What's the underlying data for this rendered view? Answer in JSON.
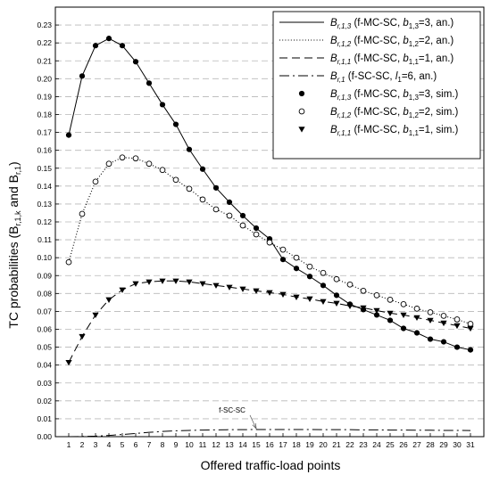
{
  "chart_data": {
    "type": "line",
    "xlabel": "Offered traffic-load points",
    "ylabel": "TC probabilities (B",
    "ylabel_sub1": "r,1,k",
    "ylabel_mid": " and B",
    "ylabel_sub2": "r,1",
    "ylabel_end": ")",
    "xlim": [
      0,
      32
    ],
    "ylim": [
      0,
      0.24
    ],
    "x_ticks": [
      1,
      2,
      3,
      4,
      5,
      6,
      7,
      8,
      9,
      10,
      11,
      12,
      13,
      14,
      15,
      16,
      17,
      18,
      19,
      20,
      21,
      22,
      23,
      24,
      25,
      26,
      27,
      28,
      29,
      30,
      31
    ],
    "y_ticks": [
      "0.00",
      "0.01",
      "0.02",
      "0.03",
      "0.04",
      "0.05",
      "0.06",
      "0.07",
      "0.08",
      "0.09",
      "0.10",
      "0.11",
      "0.12",
      "0.13",
      "0.14",
      "0.15",
      "0.16",
      "0.17",
      "0.18",
      "0.19",
      "0.20",
      "0.21",
      "0.22",
      "0.23"
    ],
    "grid": "horizontal dashed",
    "legend_position": "top-right",
    "x": [
      1,
      2,
      3,
      4,
      5,
      6,
      7,
      8,
      9,
      10,
      11,
      12,
      13,
      14,
      15,
      16,
      17,
      18,
      19,
      20,
      21,
      22,
      23,
      24,
      25,
      26,
      27,
      28,
      29,
      30,
      31
    ],
    "series": [
      {
        "legend_main": "B",
        "legend_sub": "r,1,3",
        "legend_rest": " (f-MC-SC, ",
        "legend_pname": "b",
        "legend_psub": "1,3",
        "legend_pval": "=3, an.)",
        "style": "solid",
        "values": [
          0.1685,
          0.2015,
          0.2185,
          0.2225,
          0.2185,
          0.2095,
          0.1975,
          0.1855,
          0.1745,
          0.1605,
          0.1495,
          0.139,
          0.131,
          0.1235,
          0.1165,
          0.1105,
          0.099,
          0.094,
          0.0895,
          0.0845,
          0.079,
          0.074,
          0.071,
          0.068,
          0.065,
          0.0605,
          0.058,
          0.0545,
          0.053,
          0.05,
          0.0485
        ]
      },
      {
        "legend_main": "B",
        "legend_sub": "r,1,2",
        "legend_rest": " (f-MC-SC, ",
        "legend_pname": "b",
        "legend_psub": "1,2",
        "legend_pval": "=2, an.)",
        "style": "dotted",
        "values": [
          0.0975,
          0.1245,
          0.1425,
          0.1525,
          0.156,
          0.1555,
          0.1525,
          0.149,
          0.1435,
          0.1385,
          0.1325,
          0.127,
          0.1235,
          0.118,
          0.113,
          0.1085,
          0.1045,
          0.1,
          0.095,
          0.0915,
          0.088,
          0.085,
          0.0815,
          0.079,
          0.0765,
          0.074,
          0.0715,
          0.0695,
          0.0675,
          0.0655,
          0.063
        ]
      },
      {
        "legend_main": "B",
        "legend_sub": "r,1,1",
        "legend_rest": " (f-MC-SC, ",
        "legend_pname": "b",
        "legend_psub": "1,1",
        "legend_pval": "=1, an.)",
        "style": "dashed",
        "values": [
          0.0415,
          0.056,
          0.068,
          0.0765,
          0.082,
          0.0855,
          0.0865,
          0.087,
          0.087,
          0.0865,
          0.0855,
          0.0845,
          0.0835,
          0.0825,
          0.0815,
          0.0805,
          0.0795,
          0.078,
          0.077,
          0.0755,
          0.0745,
          0.073,
          0.072,
          0.0705,
          0.069,
          0.068,
          0.0665,
          0.065,
          0.0635,
          0.062,
          0.0605
        ]
      },
      {
        "legend_main": "B",
        "legend_sub": "r,1",
        "legend_rest": " (f-SC-SC, ",
        "legend_pname": "l",
        "legend_psub": "1",
        "legend_pval": "=6, an.)",
        "style": "dashdot",
        "values": [
          0.0,
          0.0001,
          0.0003,
          0.0007,
          0.0012,
          0.0018,
          0.0024,
          0.0029,
          0.0033,
          0.0035,
          0.0037,
          0.0038,
          0.0039,
          0.0039,
          0.004,
          0.004,
          0.004,
          0.004,
          0.004,
          0.0039,
          0.0039,
          0.0039,
          0.0038,
          0.0038,
          0.0037,
          0.0037,
          0.0036,
          0.0036,
          0.0035,
          0.0035,
          0.0034
        ]
      }
    ],
    "markers": [
      {
        "legend_main": "B",
        "legend_sub": "r,1,3",
        "legend_rest": " (f-MC-SC, ",
        "legend_pname": "b",
        "legend_psub": "1,3",
        "legend_pval": "=3, sim.)",
        "marker": "filled-circle",
        "series_index": 0
      },
      {
        "legend_main": "B",
        "legend_sub": "r,1,2",
        "legend_rest": " (f-MC-SC, ",
        "legend_pname": "b",
        "legend_psub": "1,2",
        "legend_pval": "=2, sim.)",
        "marker": "open-circle",
        "series_index": 1
      },
      {
        "legend_main": "B",
        "legend_sub": "r,1,1",
        "legend_rest": " (f-MC-SC, ",
        "legend_pname": "b",
        "legend_psub": "1,1",
        "legend_pval": "=1, sim.)",
        "marker": "filled-triangle-down",
        "series_index": 2
      }
    ],
    "annotation": {
      "text": "f-SC-SC",
      "text_x": 13.2,
      "text_y": 0.0135,
      "arrow_to_x": 15,
      "arrow_to_y": 0.0045
    }
  }
}
